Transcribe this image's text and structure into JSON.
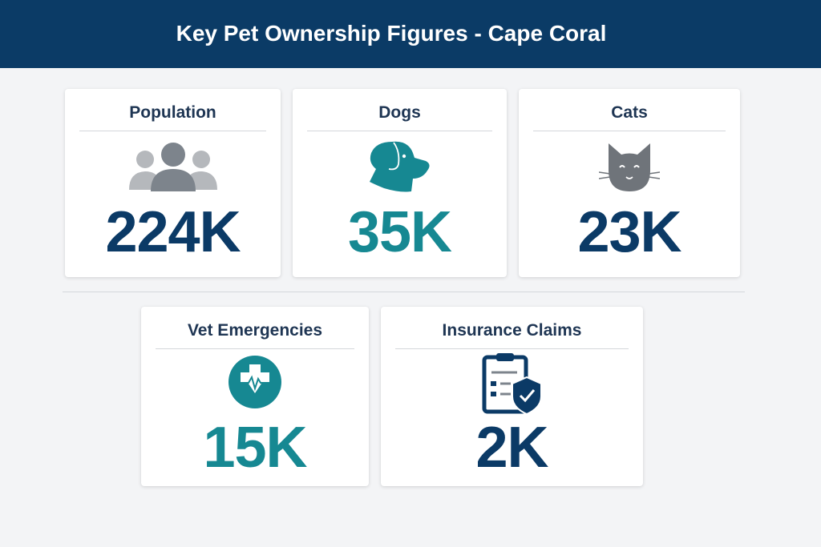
{
  "header": {
    "title": "Key Pet Ownership Figures - Cape Coral"
  },
  "colors": {
    "header": "#0b3b66",
    "navy": "#0b3a66",
    "teal": "#168892",
    "gray": "#7d848c"
  },
  "cards": [
    {
      "label": "Population",
      "value": "224K",
      "icon": "people-icon"
    },
    {
      "label": "Dogs",
      "value": "35K",
      "icon": "dog-icon"
    },
    {
      "label": "Cats",
      "value": "23K",
      "icon": "cat-icon"
    },
    {
      "label": "Vet Emergencies",
      "value": "15K",
      "icon": "medical-cross-heartbeat-icon"
    },
    {
      "label": "Insurance Claims",
      "value": "2K",
      "icon": "clipboard-shield-icon"
    }
  ]
}
